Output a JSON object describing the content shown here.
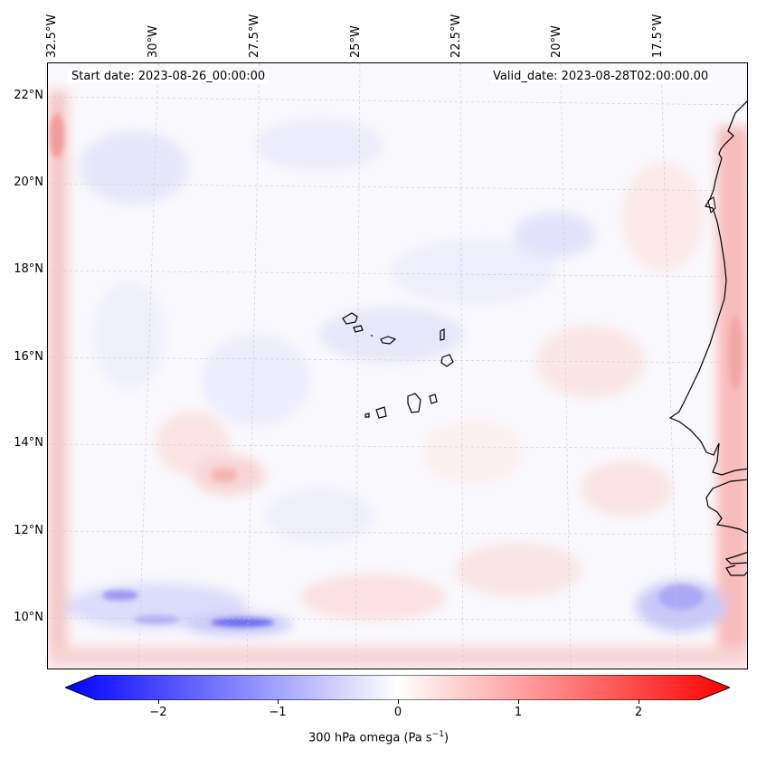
{
  "map": {
    "lon_labels": [
      "32.5°W",
      "30°W",
      "27.5°W",
      "25°W",
      "22.5°W",
      "20°W",
      "17.5°W"
    ],
    "lat_labels": [
      "22°N",
      "20°N",
      "18°N",
      "16°N",
      "14°N",
      "12°N",
      "10°N"
    ],
    "start_date": "Start date: 2023-08-26_00:00:00",
    "valid_date": "Valid_date: 2023-08-28T02:00:00.00"
  },
  "colorbar": {
    "ticks": [
      "−2",
      "−1",
      "0",
      "1",
      "2"
    ],
    "label_main": "300 hPa omega (Pa s",
    "label_sup": "−1",
    "label_close": ")",
    "colors": {
      "negative": "#0000ff",
      "zero": "#ffffff",
      "positive": "#ff0000"
    }
  }
}
